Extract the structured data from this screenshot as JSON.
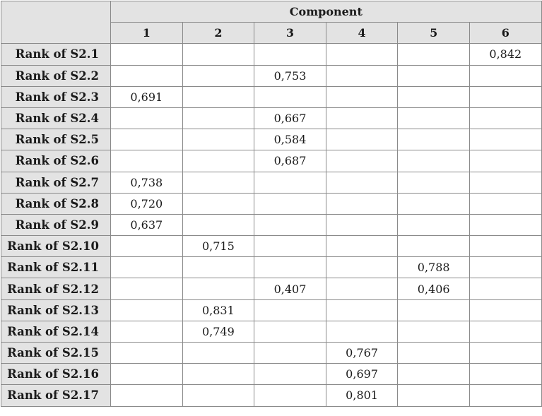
{
  "header": {
    "group_label": "Component",
    "columns": [
      "1",
      "2",
      "3",
      "4",
      "5",
      "6"
    ]
  },
  "rows": [
    {
      "label": "Rank of S2.1",
      "values": [
        "",
        "",
        "",
        "",
        "",
        "0,842"
      ]
    },
    {
      "label": "Rank of S2.2",
      "values": [
        "",
        "",
        "0,753",
        "",
        "",
        ""
      ]
    },
    {
      "label": "Rank of S2.3",
      "values": [
        "0,691",
        "",
        "",
        "",
        "",
        ""
      ]
    },
    {
      "label": "Rank of S2.4",
      "values": [
        "",
        "",
        "0,667",
        "",
        "",
        ""
      ]
    },
    {
      "label": "Rank of S2.5",
      "values": [
        "",
        "",
        "0,584",
        "",
        "",
        ""
      ]
    },
    {
      "label": "Rank of S2.6",
      "values": [
        "",
        "",
        "0,687",
        "",
        "",
        ""
      ]
    },
    {
      "label": "Rank of S2.7",
      "values": [
        "0,738",
        "",
        "",
        "",
        "",
        ""
      ]
    },
    {
      "label": "Rank of S2.8",
      "values": [
        "0,720",
        "",
        "",
        "",
        "",
        ""
      ]
    },
    {
      "label": "Rank of S2.9",
      "values": [
        "0,637",
        "",
        "",
        "",
        "",
        ""
      ]
    },
    {
      "label": "Rank of S2.10",
      "values": [
        "",
        "0,715",
        "",
        "",
        "",
        ""
      ]
    },
    {
      "label": "Rank of S2.11",
      "values": [
        "",
        "",
        "",
        "",
        "0,788",
        ""
      ]
    },
    {
      "label": "Rank of S2.12",
      "values": [
        "",
        "",
        "0,407",
        "",
        "0,406",
        ""
      ]
    },
    {
      "label": "Rank of S2.13",
      "values": [
        "",
        "0,831",
        "",
        "",
        "",
        ""
      ]
    },
    {
      "label": "Rank of S2.14",
      "values": [
        "",
        "0,749",
        "",
        "",
        "",
        ""
      ]
    },
    {
      "label": "Rank of S2.15",
      "values": [
        "",
        "",
        "",
        "0,767",
        "",
        ""
      ]
    },
    {
      "label": "Rank of S2.16",
      "values": [
        "",
        "",
        "",
        "0,697",
        "",
        ""
      ]
    },
    {
      "label": "Rank of S2.17",
      "values": [
        "",
        "",
        "",
        "0,801",
        "",
        ""
      ]
    }
  ]
}
